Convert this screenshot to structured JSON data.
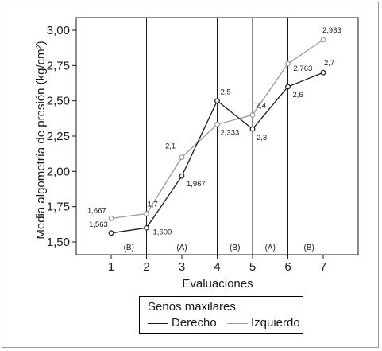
{
  "chart_data": {
    "type": "line",
    "xlabel": "Evaluaciones",
    "ylabel": "Media algometría de presión (kg/cm²)",
    "x": [
      1,
      2,
      3,
      4,
      5,
      6,
      7
    ],
    "xlim": [
      0,
      8
    ],
    "ylim": [
      1.45,
      3.05
    ],
    "yticks": [
      1.5,
      1.75,
      2.0,
      2.25,
      2.5,
      2.75,
      3.0
    ],
    "ytick_labels": [
      "1,50",
      "1,75",
      "2,00",
      "2,25",
      "2,50",
      "2,75",
      "3,00"
    ],
    "xtick_labels": [
      "1",
      "2",
      "3",
      "4",
      "5",
      "6",
      "7"
    ],
    "vertical_lines": [
      2,
      4,
      5,
      6
    ],
    "phase_labels": [
      {
        "x": 1.5,
        "label": "(B)"
      },
      {
        "x": 3.0,
        "label": "(A)"
      },
      {
        "x": 4.5,
        "label": "(B)"
      },
      {
        "x": 5.5,
        "label": "(A)"
      },
      {
        "x": 6.6,
        "label": "(B)"
      }
    ],
    "series": [
      {
        "name": "Derecho",
        "color": "#1a1a1a",
        "values": [
          1.563,
          1.6,
          1.967,
          2.5,
          2.3,
          2.6,
          2.7
        ],
        "labels": [
          "1,563",
          "1,600",
          "1,967",
          "2,5",
          "2,3",
          "2,6",
          "2,7"
        ]
      },
      {
        "name": "Izquierdo",
        "color": "#9a9a9a",
        "values": [
          1.667,
          1.7,
          2.1,
          2.333,
          2.4,
          2.763,
          2.933
        ],
        "labels": [
          "1,667",
          "1,7",
          "2,1",
          "2,333",
          "2,4",
          "2,763",
          "2,933"
        ]
      }
    ],
    "legend": {
      "title": "Senos maxilares",
      "position": "bottom"
    }
  }
}
